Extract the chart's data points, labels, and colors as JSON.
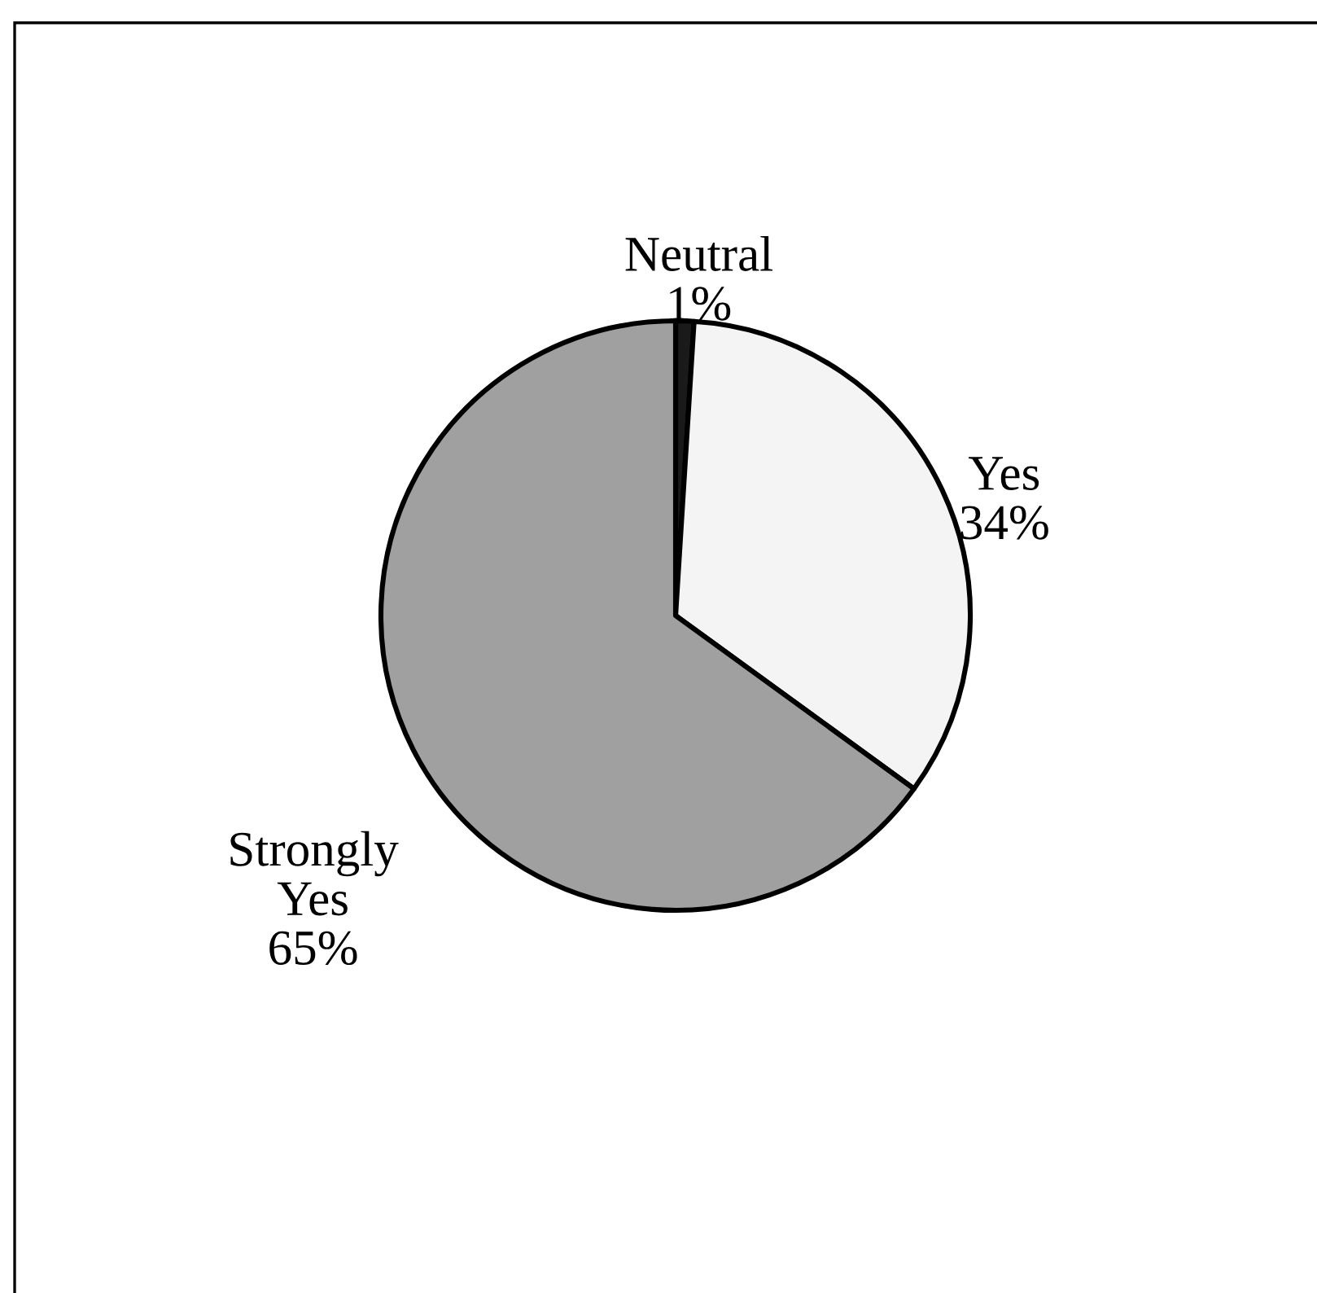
{
  "chart_data": {
    "type": "pie",
    "categories": [
      "Neutral",
      "Yes",
      "Strongly Yes"
    ],
    "values": [
      1,
      34,
      65
    ],
    "colors": [
      "#1a1a1a",
      "#f4f4f4",
      "#a0a0a0"
    ],
    "value_labels": [
      "1%",
      "34%",
      "65%"
    ]
  }
}
